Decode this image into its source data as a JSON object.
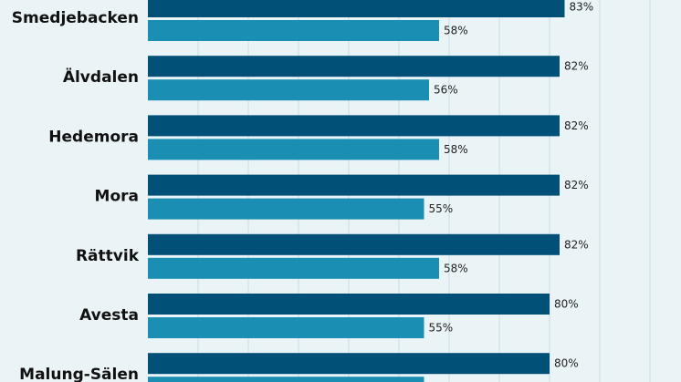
{
  "chart_data": {
    "type": "bar",
    "orientation": "horizontal",
    "grid": true,
    "categories": [
      "Smedjebacken",
      "Älvdalen",
      "Hedemora",
      "Mora",
      "Rättvik",
      "Avesta",
      "Malung-Sälen"
    ],
    "series": [
      {
        "values": [
          83,
          82,
          82,
          82,
          82,
          80,
          80
        ],
        "labels": [
          "83%",
          "82%",
          "82%",
          "82%",
          "82%",
          "80%",
          "80%"
        ],
        "color": "#005078"
      },
      {
        "values": [
          58,
          56,
          58,
          55,
          58,
          55,
          55
        ],
        "labels": [
          "58%",
          "56%",
          "58%",
          "55%",
          "58%",
          "55%",
          ""
        ],
        "color": "#1b8fb3"
      }
    ],
    "xlim": [
      0,
      100
    ]
  },
  "colors": {
    "background": "#eaf4f7",
    "grid": "#c5dde6",
    "dark_bar": "#005078",
    "light_bar": "#1b8fb3"
  }
}
